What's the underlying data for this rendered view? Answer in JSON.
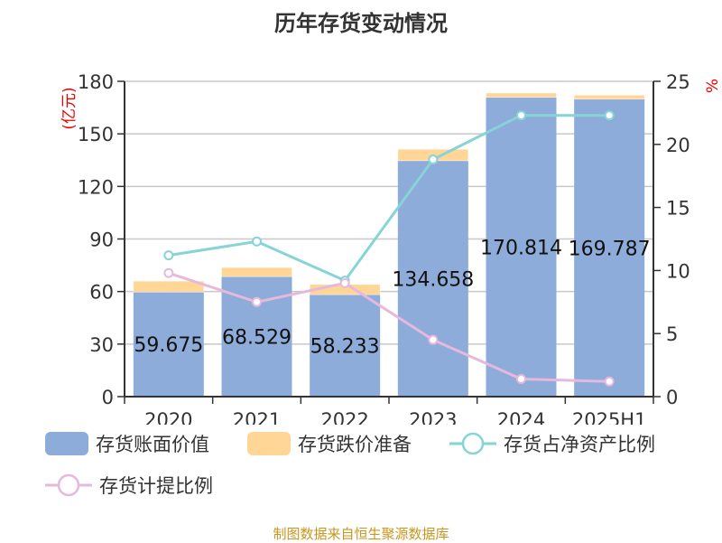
{
  "title": "历年存货变动情况",
  "footer": "制图数据来自恒生聚源数据库",
  "chart_data": {
    "type": "bar+line",
    "categories": [
      "2020",
      "2021",
      "2022",
      "2023",
      "2024",
      "2025H1"
    ],
    "left_axis": {
      "label": "(亿元)",
      "range": [
        0,
        180
      ],
      "ticks": [
        0,
        30,
        60,
        90,
        120,
        150,
        180
      ]
    },
    "right_axis": {
      "label": "%",
      "range": [
        0,
        25
      ],
      "ticks": [
        0,
        5,
        10,
        15,
        20,
        25
      ]
    },
    "grid": true,
    "legend_position": "bottom",
    "series": [
      {
        "name": "存货账面价值",
        "type": "bar",
        "axis": "left",
        "color": "#8eacd9",
        "values": [
          59.675,
          68.529,
          58.233,
          134.658,
          170.814,
          169.787
        ],
        "labels": [
          "59.675",
          "68.529",
          "58.233",
          "134.658",
          "170.814",
          "169.787"
        ]
      },
      {
        "name": "存货跌价准备",
        "type": "bar",
        "axis": "left",
        "color": "#ffd696",
        "values": [
          6.3,
          5.2,
          5.8,
          6.6,
          2.5,
          2.4
        ]
      },
      {
        "name": "存货占净资产比例",
        "type": "line",
        "axis": "right",
        "color": "#86d4d6",
        "values": [
          11.2,
          12.3,
          9.2,
          18.8,
          22.3,
          22.3
        ]
      },
      {
        "name": "存货计提比例",
        "type": "line",
        "axis": "right",
        "color": "#e6b8dc",
        "values": [
          9.8,
          7.5,
          9.0,
          4.5,
          1.4,
          1.2
        ]
      }
    ]
  }
}
